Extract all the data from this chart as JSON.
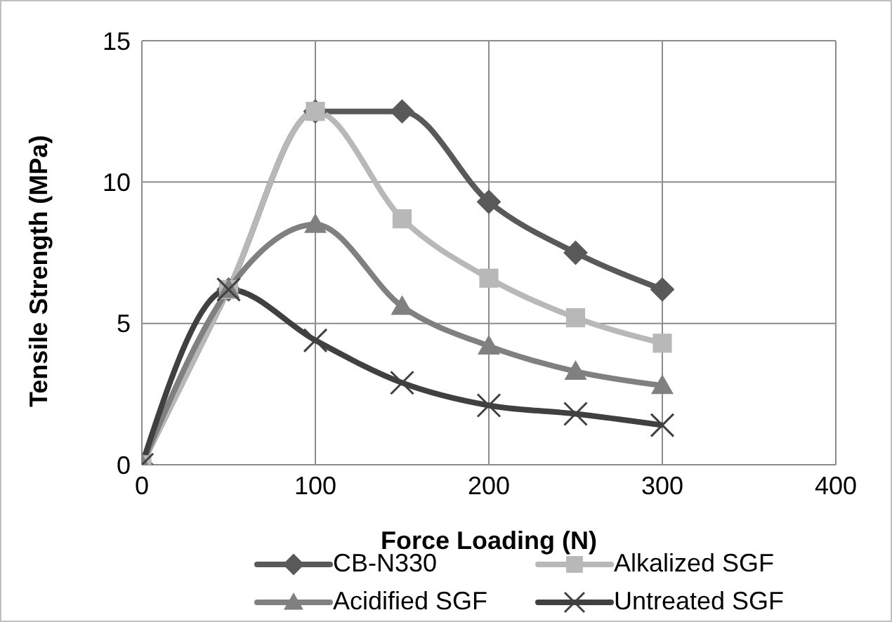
{
  "chart_data": {
    "type": "line",
    "xlabel": "Force Loading (N)",
    "ylabel": "Tensile Strength (MPa)",
    "x": [
      0,
      50,
      100,
      150,
      200,
      250,
      300
    ],
    "series": [
      {
        "name": "CB-N330",
        "color": "#595959",
        "marker": "diamond",
        "values": [
          0,
          6.2,
          12.5,
          12.5,
          9.3,
          7.5,
          6.2
        ]
      },
      {
        "name": "Alkalized SGF",
        "color": "#b8b8b8",
        "marker": "square",
        "values": [
          0,
          6.2,
          12.5,
          8.7,
          6.6,
          5.2,
          4.3
        ]
      },
      {
        "name": "Acidified SGF",
        "color": "#808080",
        "marker": "triangle",
        "values": [
          0,
          6.2,
          8.5,
          5.6,
          4.2,
          3.3,
          2.8
        ]
      },
      {
        "name": "Untreated SGF",
        "color": "#404040",
        "marker": "cross",
        "values": [
          0,
          6.2,
          4.4,
          2.9,
          2.1,
          1.8,
          1.4
        ]
      }
    ],
    "xlim": [
      0,
      400
    ],
    "xticks": [
      0,
      100,
      200,
      300,
      400
    ],
    "ylim": [
      0,
      15
    ],
    "yticks": [
      0,
      5,
      10,
      15
    ],
    "grid": true,
    "legend": "bottom"
  }
}
